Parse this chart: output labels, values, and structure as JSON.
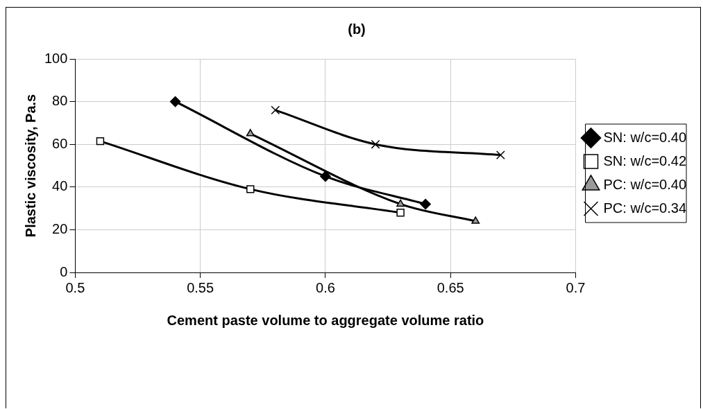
{
  "chart_data": {
    "type": "line",
    "title": "(b)",
    "xlabel": "Cement paste volume to aggregate volume ratio",
    "ylabel": "Plastic viscosity, Pa.s",
    "xlim": [
      0.5,
      0.7
    ],
    "xticks": [
      0.5,
      0.55,
      0.6,
      0.65,
      0.7
    ],
    "ylim": [
      0,
      100
    ],
    "yticks": [
      0,
      20,
      40,
      60,
      80,
      100
    ],
    "grid": true,
    "legend": "right",
    "line_style": "solid",
    "series": [
      {
        "name": "SN: w/c=0.40",
        "color": "#000000",
        "marker": "diamond",
        "x": [
          0.54,
          0.6,
          0.64
        ],
        "values": [
          80,
          45,
          32
        ]
      },
      {
        "name": "SN: w/c=0.42",
        "color": "#000000",
        "marker": "square",
        "x": [
          0.51,
          0.57,
          0.63
        ],
        "values": [
          61.5,
          39,
          28
        ]
      },
      {
        "name": "PC: w/c=0.40",
        "color": "#000000",
        "marker": "triangle",
        "x": [
          0.57,
          0.63,
          0.66
        ],
        "values": [
          65,
          32,
          24
        ]
      },
      {
        "name": "PC: w/c=0.34",
        "color": "#000000",
        "marker": "cross",
        "x": [
          0.58,
          0.62,
          0.67
        ],
        "values": [
          76,
          60,
          55
        ]
      }
    ]
  }
}
